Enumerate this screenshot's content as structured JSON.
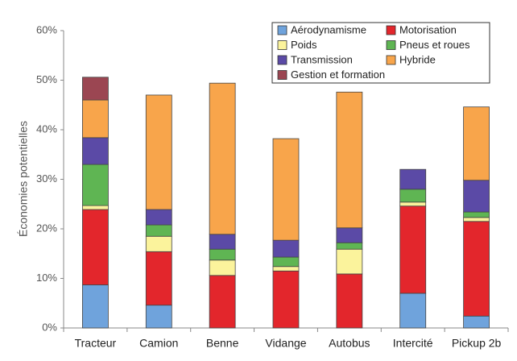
{
  "chart_data": {
    "type": "stacked-bar",
    "y_label": "Économies potentielles",
    "categories": [
      "Tracteur",
      "Camion",
      "Benne",
      "Vidange",
      "Autobus",
      "Intercité",
      "Pickup 2b"
    ],
    "series": [
      {
        "name": "Aérodynamisme",
        "color": "#6fa3dc",
        "values": [
          8.7,
          4.6,
          0,
          0,
          0,
          7.0,
          2.4
        ]
      },
      {
        "name": "Motorisation",
        "color": "#e3262c",
        "values": [
          15.2,
          10.8,
          10.6,
          11.5,
          10.9,
          17.6,
          19.1
        ]
      },
      {
        "name": "Poids",
        "color": "#fbf39c",
        "values": [
          0.8,
          3.1,
          3.1,
          0.9,
          5.0,
          0.8,
          0.8
        ]
      },
      {
        "name": "Pneus et roues",
        "color": "#5fb553",
        "values": [
          8.3,
          2.3,
          2.2,
          1.9,
          1.3,
          2.6,
          1.1
        ]
      },
      {
        "name": "Transmission",
        "color": "#5b4aa6",
        "values": [
          5.4,
          3.1,
          3.0,
          3.4,
          3.0,
          4.0,
          6.4
        ]
      },
      {
        "name": "Hybride",
        "color": "#f8a54b",
        "values": [
          7.6,
          23.1,
          30.5,
          20.5,
          27.4,
          0,
          14.8
        ]
      },
      {
        "name": "Gestion et formation",
        "color": "#9b4652",
        "values": [
          4.6,
          0,
          0,
          0,
          0,
          0,
          0
        ]
      }
    ],
    "ylim": [
      0,
      60
    ],
    "yticks": [
      {
        "value": 0,
        "label": "0%"
      },
      {
        "value": 10,
        "label": "10%"
      },
      {
        "value": 20,
        "label": "20%"
      },
      {
        "value": 30,
        "label": "30%"
      },
      {
        "value": 40,
        "label": "40%"
      },
      {
        "value": 50,
        "label": "50%"
      },
      {
        "value": 60,
        "label": "60%"
      }
    ],
    "grid": false
  }
}
